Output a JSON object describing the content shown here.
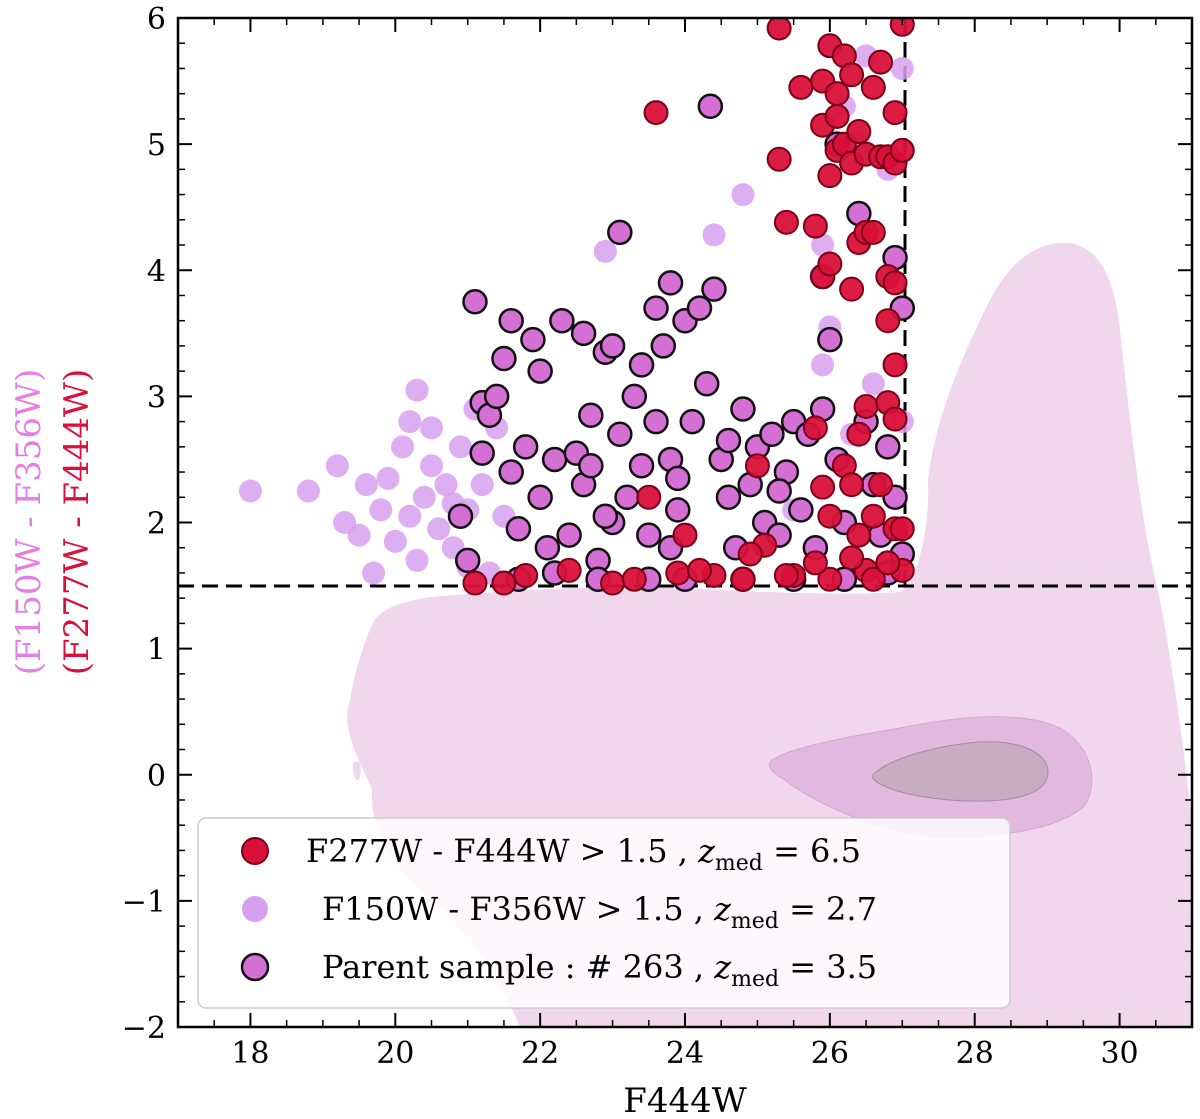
{
  "chart_data": {
    "type": "scatter",
    "title": "",
    "xlabel": "F444W",
    "ylabel_line1": "(F150W - F356W)",
    "ylabel_line2": "(F277W - F444W)",
    "xlim": [
      17,
      31
    ],
    "ylim": [
      -2,
      6
    ],
    "xticks": [
      18,
      20,
      22,
      24,
      26,
      28,
      30
    ],
    "yticks": [
      -2,
      -1,
      0,
      1,
      2,
      3,
      4,
      5,
      6
    ],
    "ytick_labels": [
      "−2",
      "−1",
      "0",
      "1",
      "2",
      "3",
      "4",
      "5",
      "6"
    ],
    "color_cut": 1.5,
    "mag_cut": 27.0,
    "colors": {
      "red": "#d9113a",
      "lightviolet": "#d7a0ee",
      "violet": "#d46fd4",
      "ylabel1": "#e27ee4",
      "ylabel2": "#d9113a"
    },
    "legend": [
      {
        "key": "red",
        "text": "F277W - F444W > 1.5 , ",
        "zsym": "z",
        "zsub": "med",
        "zval": " = 6.5"
      },
      {
        "key": "lightviolet",
        "text": "F150W - F356W > 1.5 , ",
        "zsym": "z",
        "zsub": "med",
        "zval": " = 2.7"
      },
      {
        "key": "parent",
        "text": "Parent sample : # 263 , ",
        "zsym": "z",
        "zsub": "med",
        "zval": " = 3.5"
      }
    ],
    "series": [
      {
        "name": "F150W - F356W > 1.5",
        "color": "#d7a0ee",
        "points": [
          [
            18.0,
            2.25
          ],
          [
            18.8,
            2.25
          ],
          [
            19.2,
            2.45
          ],
          [
            19.3,
            2.0
          ],
          [
            19.5,
            1.9
          ],
          [
            19.6,
            2.3
          ],
          [
            19.7,
            1.6
          ],
          [
            19.8,
            2.1
          ],
          [
            19.9,
            2.35
          ],
          [
            20.0,
            1.85
          ],
          [
            20.1,
            2.6
          ],
          [
            20.2,
            2.05
          ],
          [
            20.3,
            3.05
          ],
          [
            20.3,
            1.7
          ],
          [
            20.4,
            2.2
          ],
          [
            20.5,
            2.45
          ],
          [
            20.6,
            1.95
          ],
          [
            20.7,
            2.3
          ],
          [
            20.8,
            1.8
          ],
          [
            20.9,
            2.6
          ],
          [
            21.0,
            2.1
          ],
          [
            21.1,
            2.9
          ],
          [
            21.2,
            2.3
          ],
          [
            21.3,
            1.6
          ],
          [
            21.4,
            2.75
          ],
          [
            20.2,
            2.8
          ],
          [
            20.5,
            2.75
          ],
          [
            20.8,
            2.15
          ],
          [
            21.5,
            2.05
          ],
          [
            21.0,
            1.65
          ],
          [
            22.9,
            4.15
          ],
          [
            24.4,
            4.28
          ],
          [
            24.8,
            4.6
          ],
          [
            25.9,
            4.2
          ],
          [
            26.0,
            3.55
          ],
          [
            25.9,
            3.25
          ],
          [
            26.2,
            5.3
          ],
          [
            26.5,
            5.7
          ],
          [
            26.4,
            5.0
          ],
          [
            26.8,
            4.8
          ],
          [
            26.6,
            3.1
          ],
          [
            27.0,
            5.6
          ],
          [
            27.0,
            2.8
          ],
          [
            26.3,
            2.7
          ],
          [
            25.5,
            2.1
          ]
        ]
      },
      {
        "name": "Parent sample",
        "color": "#d46fd4",
        "points": [
          [
            20.9,
            2.05
          ],
          [
            21.0,
            1.7
          ],
          [
            21.1,
            3.75
          ],
          [
            21.2,
            2.95
          ],
          [
            21.2,
            2.55
          ],
          [
            21.3,
            2.85
          ],
          [
            21.4,
            3.0
          ],
          [
            21.5,
            3.3
          ],
          [
            21.6,
            3.6
          ],
          [
            21.6,
            2.4
          ],
          [
            21.7,
            1.95
          ],
          [
            21.8,
            2.6
          ],
          [
            21.9,
            3.45
          ],
          [
            22.0,
            3.2
          ],
          [
            22.0,
            2.2
          ],
          [
            22.1,
            1.8
          ],
          [
            22.2,
            2.5
          ],
          [
            22.3,
            3.6
          ],
          [
            22.4,
            1.9
          ],
          [
            22.5,
            2.55
          ],
          [
            22.6,
            2.3
          ],
          [
            22.6,
            3.5
          ],
          [
            22.7,
            2.85
          ],
          [
            22.8,
            1.7
          ],
          [
            22.9,
            3.35
          ],
          [
            23.0,
            2.0
          ],
          [
            23.0,
            3.4
          ],
          [
            23.1,
            4.3
          ],
          [
            23.1,
            2.7
          ],
          [
            23.2,
            2.2
          ],
          [
            23.3,
            3.0
          ],
          [
            23.4,
            3.25
          ],
          [
            23.4,
            2.45
          ],
          [
            23.5,
            1.9
          ],
          [
            23.6,
            3.7
          ],
          [
            23.6,
            2.8
          ],
          [
            23.7,
            3.4
          ],
          [
            23.8,
            2.5
          ],
          [
            23.8,
            3.9
          ],
          [
            23.9,
            2.1
          ],
          [
            24.0,
            3.6
          ],
          [
            24.1,
            2.8
          ],
          [
            24.2,
            3.7
          ],
          [
            24.3,
            3.1
          ],
          [
            24.4,
            3.85
          ],
          [
            24.35,
            5.3
          ],
          [
            24.5,
            2.5
          ],
          [
            24.6,
            2.2
          ],
          [
            24.7,
            1.8
          ],
          [
            24.8,
            2.9
          ],
          [
            24.9,
            2.3
          ],
          [
            25.0,
            2.6
          ],
          [
            25.1,
            2.0
          ],
          [
            25.2,
            2.7
          ],
          [
            25.3,
            1.9
          ],
          [
            25.4,
            2.4
          ],
          [
            25.5,
            2.8
          ],
          [
            25.6,
            2.1
          ],
          [
            25.7,
            2.7
          ],
          [
            25.8,
            1.8
          ],
          [
            25.9,
            3.95
          ],
          [
            26.0,
            3.45
          ],
          [
            26.1,
            2.5
          ],
          [
            26.2,
            2.0
          ],
          [
            26.4,
            4.45
          ],
          [
            26.5,
            2.8
          ],
          [
            26.6,
            2.3
          ],
          [
            26.7,
            1.9
          ],
          [
            26.8,
            2.6
          ],
          [
            26.9,
            4.1
          ],
          [
            27.0,
            3.7
          ],
          [
            27.0,
            1.75
          ],
          [
            26.9,
            2.2
          ],
          [
            26.8,
            1.6
          ],
          [
            26.2,
            1.55
          ],
          [
            25.5,
            1.55
          ],
          [
            24.8,
            1.55
          ],
          [
            24.0,
            1.55
          ],
          [
            23.5,
            1.55
          ],
          [
            22.8,
            1.55
          ],
          [
            22.2,
            1.6
          ],
          [
            21.7,
            1.55
          ],
          [
            25.9,
            2.9
          ],
          [
            26.1,
            5.0
          ],
          [
            25.3,
            2.25
          ],
          [
            24.6,
            2.65
          ],
          [
            23.9,
            2.35
          ],
          [
            22.9,
            2.05
          ],
          [
            22.7,
            2.45
          ],
          [
            23.8,
            1.8
          ]
        ]
      },
      {
        "name": "F277W - F444W > 1.5",
        "color": "#d9113a",
        "points": [
          [
            21.1,
            1.52
          ],
          [
            21.5,
            1.52
          ],
          [
            21.8,
            1.58
          ],
          [
            22.4,
            1.62
          ],
          [
            23.0,
            1.52
          ],
          [
            23.3,
            1.55
          ],
          [
            23.5,
            2.2
          ],
          [
            23.6,
            5.25
          ],
          [
            23.9,
            1.6
          ],
          [
            24.0,
            1.9
          ],
          [
            24.4,
            1.58
          ],
          [
            24.8,
            1.55
          ],
          [
            25.0,
            2.45
          ],
          [
            25.1,
            1.82
          ],
          [
            25.3,
            5.92
          ],
          [
            25.3,
            4.88
          ],
          [
            25.4,
            4.38
          ],
          [
            25.5,
            1.58
          ],
          [
            25.6,
            5.45
          ],
          [
            25.8,
            4.35
          ],
          [
            25.8,
            2.75
          ],
          [
            25.9,
            5.5
          ],
          [
            25.9,
            5.15
          ],
          [
            25.9,
            3.95
          ],
          [
            25.9,
            2.28
          ],
          [
            26.0,
            5.78
          ],
          [
            26.0,
            4.75
          ],
          [
            26.0,
            4.05
          ],
          [
            26.0,
            2.05
          ],
          [
            26.0,
            1.55
          ],
          [
            26.1,
            5.4
          ],
          [
            26.1,
            5.22
          ],
          [
            26.1,
            4.95
          ],
          [
            26.2,
            5.7
          ],
          [
            26.2,
            5.0
          ],
          [
            26.2,
            2.45
          ],
          [
            26.3,
            5.55
          ],
          [
            26.3,
            4.85
          ],
          [
            26.3,
            3.85
          ],
          [
            26.3,
            2.3
          ],
          [
            26.4,
            5.1
          ],
          [
            26.4,
            4.22
          ],
          [
            26.4,
            2.7
          ],
          [
            26.4,
            1.9
          ],
          [
            26.5,
            4.92
          ],
          [
            26.5,
            4.3
          ],
          [
            26.5,
            2.92
          ],
          [
            26.5,
            1.62
          ],
          [
            26.6,
            5.45
          ],
          [
            26.6,
            4.3
          ],
          [
            26.6,
            2.05
          ],
          [
            26.7,
            5.65
          ],
          [
            26.7,
            4.9
          ],
          [
            26.7,
            2.3
          ],
          [
            26.8,
            4.9
          ],
          [
            26.8,
            3.95
          ],
          [
            26.8,
            3.6
          ],
          [
            26.8,
            2.95
          ],
          [
            26.9,
            5.25
          ],
          [
            26.9,
            4.85
          ],
          [
            26.9,
            3.25
          ],
          [
            26.9,
            2.82
          ],
          [
            26.9,
            1.95
          ],
          [
            27.0,
            5.95
          ],
          [
            27.0,
            4.95
          ],
          [
            27.0,
            1.95
          ],
          [
            27.0,
            1.62
          ],
          [
            26.6,
            1.55
          ],
          [
            26.3,
            1.72
          ],
          [
            25.8,
            1.68
          ],
          [
            25.4,
            1.58
          ],
          [
            24.9,
            1.75
          ],
          [
            24.2,
            1.62
          ],
          [
            26.9,
            3.9
          ],
          [
            26.8,
            1.68
          ]
        ]
      }
    ]
  }
}
